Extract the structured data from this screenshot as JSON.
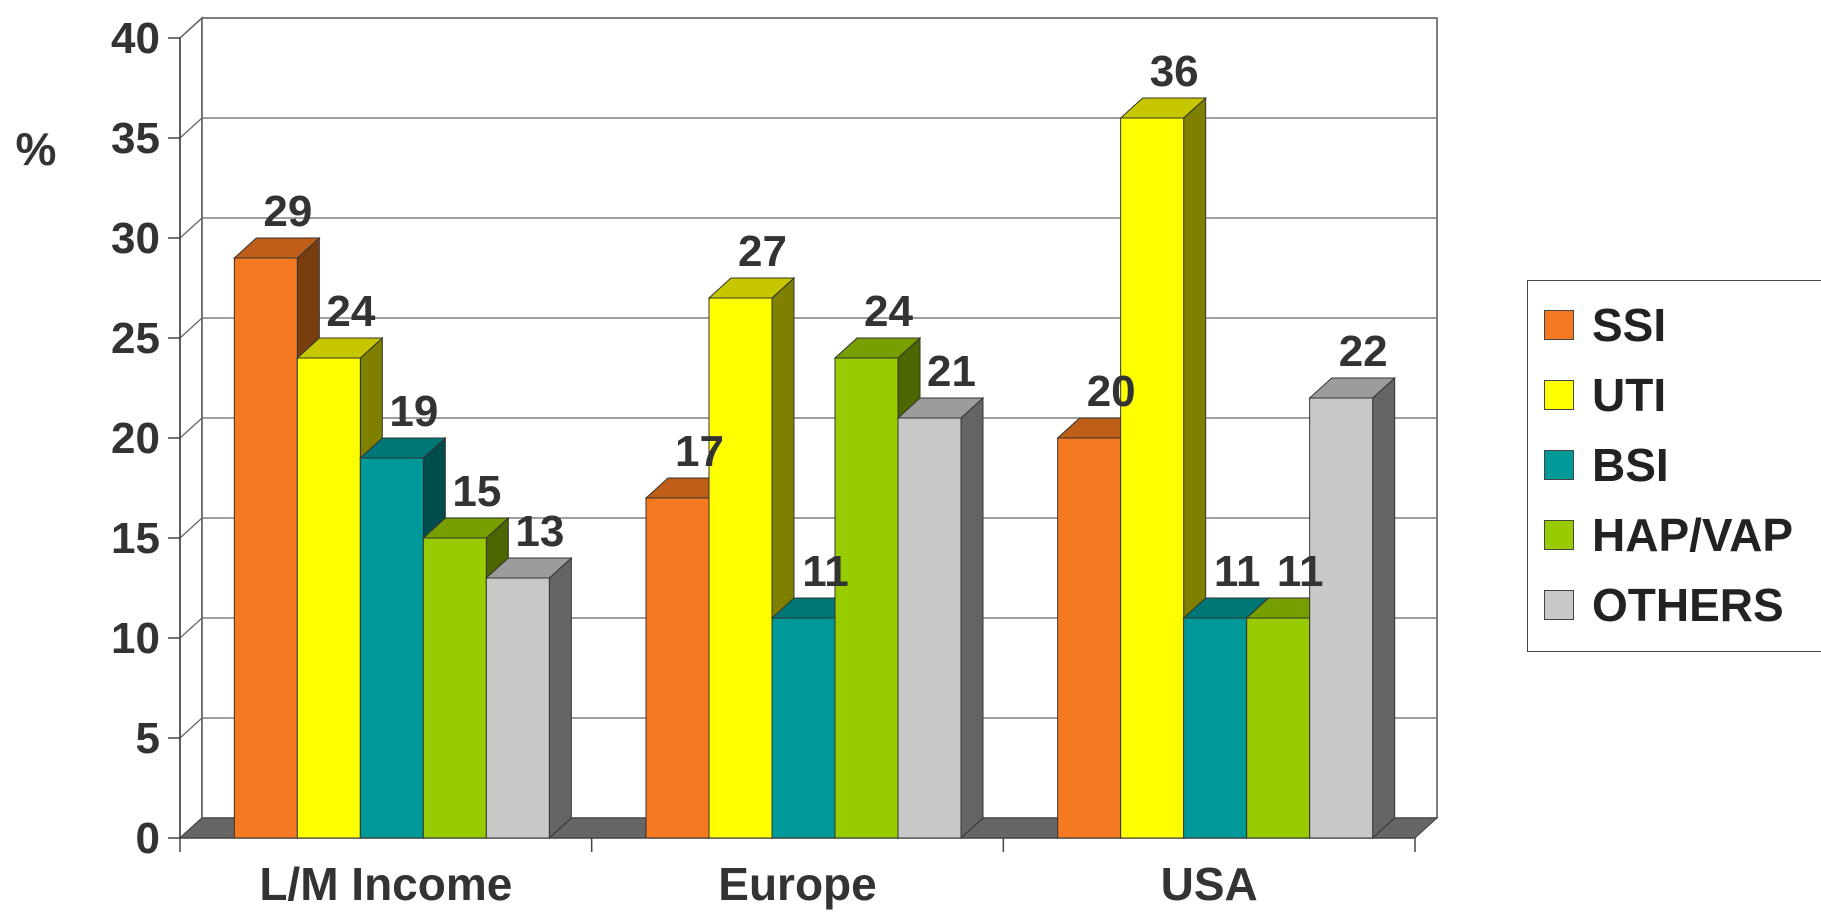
{
  "chart_data": {
    "type": "bar",
    "title": "",
    "ylabel": "%",
    "xlabel": "",
    "ylim": [
      0,
      40
    ],
    "yticks": [
      0,
      5,
      10,
      15,
      20,
      25,
      30,
      35,
      40
    ],
    "grid": true,
    "legend_position": "right",
    "categories": [
      "L/M Income",
      "Europe",
      "USA"
    ],
    "series": [
      {
        "name": "SSI",
        "color": "#F47920",
        "values": [
          29,
          17,
          20
        ]
      },
      {
        "name": "UTI",
        "color": "#FFFF00",
        "values": [
          24,
          27,
          36
        ]
      },
      {
        "name": "BSI",
        "color": "#009999",
        "values": [
          19,
          11,
          11
        ]
      },
      {
        "name": "HAP/VAP",
        "color": "#99CC00",
        "values": [
          15,
          24,
          11
        ]
      },
      {
        "name": "OTHERS",
        "color": "#C8C8C8",
        "values": [
          13,
          21,
          22
        ]
      }
    ]
  }
}
